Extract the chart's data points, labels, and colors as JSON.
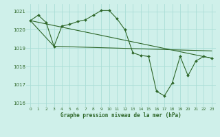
{
  "title": "Graphe pression niveau de la mer (hPa)",
  "background_color": "#cff0ea",
  "grid_color": "#aaddd6",
  "line_color": "#2d6628",
  "main_x": [
    0,
    1,
    2,
    3,
    4,
    5,
    6,
    7,
    8,
    9,
    10,
    11,
    12,
    13,
    14,
    15,
    16,
    17,
    18,
    19,
    20,
    21,
    22,
    23
  ],
  "main_y": [
    1020.5,
    1020.8,
    1020.4,
    1019.1,
    1020.2,
    1020.3,
    1020.45,
    1020.55,
    1020.8,
    1021.05,
    1021.05,
    1020.6,
    1020.0,
    1018.75,
    1018.6,
    1018.55,
    1016.65,
    1016.4,
    1017.1,
    1018.55,
    1017.5,
    1018.3,
    1018.55,
    1018.45
  ],
  "trend1_x": [
    0,
    23
  ],
  "trend1_y": [
    1020.5,
    1018.45
  ],
  "trend2_x": [
    0,
    3,
    23
  ],
  "trend2_y": [
    1020.5,
    1019.1,
    1018.85
  ],
  "ylim": [
    1015.8,
    1021.4
  ],
  "xlim": [
    -0.5,
    23.5
  ],
  "yticks": [
    1016,
    1017,
    1018,
    1019,
    1020,
    1021
  ],
  "xticks": [
    0,
    1,
    2,
    3,
    4,
    5,
    6,
    7,
    8,
    9,
    10,
    11,
    12,
    13,
    14,
    15,
    16,
    17,
    18,
    19,
    20,
    21,
    22,
    23
  ]
}
